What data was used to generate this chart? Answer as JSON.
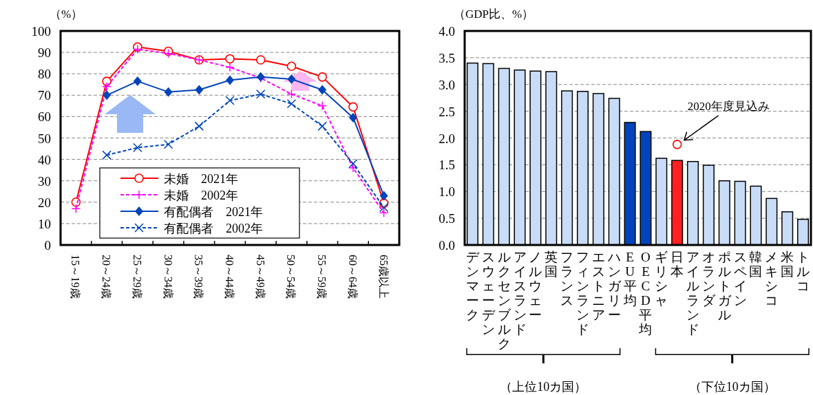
{
  "chart_data": [
    {
      "type": "line",
      "ylabel": "（%）",
      "categories": [
        "15～19歳",
        "20～24歳",
        "25～29歳",
        "30～34歳",
        "35～39歳",
        "40～44歳",
        "45～49歳",
        "50～54歳",
        "55～59歳",
        "60～64歳",
        "65歳以上"
      ],
      "series": [
        {
          "name": "未婚　2021年",
          "color": "#ff0000",
          "marker": "circle",
          "line_style": "solid",
          "values": [
            20,
            76.5,
            92.5,
            90.5,
            86.5,
            87,
            86.5,
            83.5,
            78.5,
            64.5,
            19.5
          ]
        },
        {
          "name": "未婚　2002年",
          "color": "#ff00ff",
          "marker": "plus",
          "line_style": "dashed",
          "values": [
            17,
            74,
            91.5,
            89.5,
            86.5,
            83,
            78,
            70.5,
            65,
            36,
            15
          ]
        },
        {
          "name": "有配偶者　2021年",
          "color": "#0044bb",
          "marker": "diamond",
          "line_style": "solid",
          "values": [
            null,
            70,
            76.5,
            71.5,
            72.5,
            77,
            78.5,
            77.5,
            72.5,
            59.5,
            23
          ]
        },
        {
          "name": "有配偶者　2002年",
          "color": "#0044bb",
          "marker": "cross",
          "line_style": "dashed",
          "values": [
            null,
            42,
            45.5,
            47,
            55.5,
            67.5,
            70.5,
            66,
            55.5,
            38,
            17.5
          ]
        }
      ],
      "ylim": [
        0,
        100
      ],
      "yticks": [
        0,
        10,
        20,
        30,
        40,
        50,
        60,
        70,
        80,
        90,
        100
      ],
      "grid": "y",
      "legend": "bottom"
    },
    {
      "type": "bar",
      "ylabel": "（GDP比、%）",
      "categories": [
        "デンマーク",
        "スウェーデン",
        "ルクセンブルク",
        "アイスランド",
        "ノルウェー",
        "英国",
        "フランス",
        "フィンランド",
        "エストニア",
        "ハンガリー",
        "EU平均",
        "OECD平均",
        "ギリシャ",
        "日本",
        "アイルランド",
        "オランダ",
        "ポルトガル",
        "スペイン",
        "韓国",
        "メキシコ",
        "米国",
        "トルコ"
      ],
      "values": [
        3.4,
        3.39,
        3.3,
        3.27,
        3.25,
        3.24,
        2.88,
        2.87,
        2.83,
        2.74,
        2.29,
        2.12,
        1.62,
        1.58,
        1.56,
        1.49,
        1.2,
        1.19,
        1.1,
        0.87,
        0.62,
        0.48
      ],
      "colors": [
        "#c8dcf8",
        "#c8dcf8",
        "#c8dcf8",
        "#c8dcf8",
        "#c8dcf8",
        "#c8dcf8",
        "#c8dcf8",
        "#c8dcf8",
        "#c8dcf8",
        "#c8dcf8",
        "#0044bb",
        "#0044bb",
        "#c8dcf8",
        "#ff2020",
        "#c8dcf8",
        "#c8dcf8",
        "#c8dcf8",
        "#c8dcf8",
        "#c8dcf8",
        "#c8dcf8",
        "#c8dcf8",
        "#c8dcf8"
      ],
      "series": [
        {
          "type": "scatter",
          "x": [
            "日本"
          ],
          "values": [
            1.88
          ],
          "color": "#ff0000",
          "marker": "circle"
        }
      ],
      "annotations": [
        {
          "text": "2020年度見込み",
          "x": "日本",
          "y": 1.88
        },
        "（上位10カ国）",
        "（下位10カ国）"
      ],
      "ylim": [
        0,
        4
      ],
      "yticks": [
        {
          "value": 0,
          "label": "0.0"
        },
        {
          "value": 0.5,
          "label": "0.5"
        },
        {
          "value": 1,
          "label": "1.0"
        },
        {
          "value": 1.5,
          "label": "1.5"
        },
        {
          "value": 2,
          "label": "2.0"
        },
        {
          "value": 2.5,
          "label": "2.5"
        },
        {
          "value": 3,
          "label": "3.0"
        },
        {
          "value": 3.5,
          "label": "3.5"
        },
        {
          "value": 4,
          "label": "4.0"
        }
      ],
      "grid": "y"
    }
  ]
}
